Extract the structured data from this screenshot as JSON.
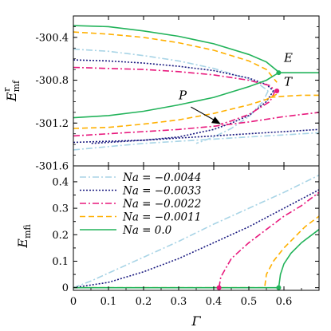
{
  "chart_data": [
    {
      "type": "line",
      "panel": "top",
      "ylabel": "E^r_mf",
      "ylabel_main": "E",
      "ylabel_sup": "r",
      "ylabel_sub": "mf",
      "xlim": [
        0,
        0.7
      ],
      "ylim": [
        -301.6,
        -300.2
      ],
      "yticks": [
        -300.4,
        -300.8,
        -301.2,
        -301.6
      ],
      "ytick_labels": [
        "-300.4",
        "-300.8",
        "-301.2",
        "-301.6"
      ],
      "xticks": [
        0,
        0.1,
        0.2,
        0.3,
        0.4,
        0.5,
        0.6
      ],
      "grid": false,
      "series": [
        {
          "name": "Na = -0.0044",
          "color": "#a8d4e6",
          "dash": "8,3,2,3",
          "branches": [
            {
              "x": [
                0,
                0.1,
                0.2,
                0.3,
                0.4,
                0.5,
                0.6,
                0.7
              ],
              "y": [
                -301.45,
                -301.42,
                -301.39,
                -301.37,
                -301.35,
                -301.33,
                -301.31,
                -301.29
              ]
            },
            {
              "x": [
                0,
                0.1,
                0.2,
                0.3,
                0.4,
                0.5,
                0.53,
                0.555
              ],
              "y": [
                -300.51,
                -300.53,
                -300.57,
                -300.62,
                -300.69,
                -300.79,
                -300.84,
                -300.9
              ]
            },
            {
              "x": [
                0.555,
                0.54,
                0.5,
                0.45,
                0.4,
                0.35
              ],
              "y": [
                -300.9,
                -301.0,
                -301.14,
                -301.25,
                -301.33,
                -301.39
              ]
            }
          ]
        },
        {
          "name": "Na = -0.0033",
          "color": "#1a1a80",
          "dash": "2,2",
          "branches": [
            {
              "x": [
                0,
                0.1,
                0.2,
                0.3,
                0.4,
                0.5,
                0.6,
                0.7
              ],
              "y": [
                -301.38,
                -301.37,
                -301.36,
                -301.34,
                -301.32,
                -301.3,
                -301.28,
                -301.26
              ]
            },
            {
              "x": [
                0,
                0.1,
                0.2,
                0.3,
                0.4,
                0.5,
                0.55,
                0.57
              ],
              "y": [
                -300.61,
                -300.62,
                -300.64,
                -300.67,
                -300.71,
                -300.78,
                -300.84,
                -300.9
              ]
            },
            {
              "x": [
                0.57,
                0.55,
                0.5,
                0.45,
                0.4,
                0.3,
                0.2,
                0.1,
                0.05
              ],
              "y": [
                -300.9,
                -301.0,
                -301.13,
                -301.2,
                -301.26,
                -301.33,
                -301.36,
                -301.38,
                -301.39
              ]
            }
          ]
        },
        {
          "name": "Na = -0.0022",
          "color": "#e8197d",
          "dash": "8,3,2,3",
          "branches": [
            {
              "x": [
                0,
                0.1,
                0.2,
                0.3,
                0.4,
                0.5,
                0.6,
                0.7
              ],
              "y": [
                -301.32,
                -301.3,
                -301.28,
                -301.26,
                -301.23,
                -301.19,
                -301.14,
                -301.1
              ]
            },
            {
              "x": [
                0,
                0.1,
                0.2,
                0.3,
                0.4,
                0.5,
                0.56,
                0.575
              ],
              "y": [
                -300.68,
                -300.69,
                -300.7,
                -300.72,
                -300.75,
                -300.8,
                -300.85,
                -300.9
              ]
            },
            {
              "x": [
                0.575,
                0.56,
                0.5,
                0.45,
                0.42
              ],
              "y": [
                -300.9,
                -301.0,
                -301.12,
                -301.18,
                -301.21
              ]
            }
          ]
        },
        {
          "name": "Na = -0.0011",
          "color": "#ffb000",
          "dash": "7,4",
          "branches": [
            {
              "x": [
                0,
                0.1,
                0.2,
                0.3,
                0.4,
                0.5,
                0.55,
                0.58
              ],
              "y": [
                -301.25,
                -301.24,
                -301.21,
                -301.17,
                -301.11,
                -301.03,
                -300.98,
                -300.93
              ]
            },
            {
              "x": [
                0,
                0.1,
                0.2,
                0.3,
                0.4,
                0.5,
                0.55,
                0.58
              ],
              "y": [
                -300.35,
                -300.37,
                -300.4,
                -300.45,
                -300.52,
                -300.62,
                -300.7,
                -300.82
              ]
            },
            {
              "x": [
                0.56,
                0.6,
                0.65,
                0.7
              ],
              "y": [
                -300.96,
                -300.95,
                -300.94,
                -300.94
              ]
            }
          ]
        },
        {
          "name": "Na = 0.0",
          "color": "#22b35a",
          "dash": "",
          "branches": [
            {
              "x": [
                0,
                0.1,
                0.2,
                0.3,
                0.4,
                0.5,
                0.55,
                0.58,
                0.585
              ],
              "y": [
                -301.15,
                -301.13,
                -301.09,
                -301.03,
                -300.96,
                -300.86,
                -300.8,
                -300.74,
                -300.73
              ]
            },
            {
              "x": [
                0,
                0.1,
                0.2,
                0.3,
                0.4,
                0.5,
                0.55,
                0.58,
                0.585
              ],
              "y": [
                -300.29,
                -300.3,
                -300.34,
                -300.39,
                -300.46,
                -300.56,
                -300.63,
                -300.71,
                -300.73
              ]
            },
            {
              "x": [
                0.585,
                0.6,
                0.65,
                0.7
              ],
              "y": [
                -300.73,
                -300.73,
                -300.73,
                -300.73
              ]
            }
          ]
        }
      ],
      "points": [
        {
          "label": "E",
          "x": 0.585,
          "y": -300.73,
          "color": "#22b35a"
        },
        {
          "label": "T",
          "x": 0.58,
          "y": -300.9,
          "color": "#e8197d"
        }
      ],
      "annotations": [
        {
          "text": "E",
          "x": 0.6,
          "y": -300.63
        },
        {
          "text": "T",
          "x": 0.6,
          "y": -300.85
        },
        {
          "text": "P",
          "x": 0.3,
          "y": -300.98
        }
      ],
      "arrow": {
        "from": [
          0.335,
          -301.05
        ],
        "to": [
          0.42,
          -301.21
        ]
      }
    },
    {
      "type": "line",
      "panel": "bottom",
      "xlabel": "Γ",
      "ylabel": "E^i_mf",
      "ylabel_main": "E",
      "ylabel_sup": "i",
      "ylabel_sub": "mf",
      "xlim": [
        0,
        0.7
      ],
      "ylim": [
        -0.01,
        0.46
      ],
      "xticks": [
        0,
        0.1,
        0.2,
        0.3,
        0.4,
        0.5,
        0.6
      ],
      "xtick_labels": [
        "0",
        "0.1",
        "0.2",
        "0.3",
        "0.4",
        "0.5",
        "0.6"
      ],
      "yticks": [
        0,
        0.05,
        0.1,
        0.15,
        0.2,
        0.25,
        0.3,
        0.35,
        0.4
      ],
      "ytick_labels": [
        "0",
        "",
        "0.1",
        "",
        "0.2",
        "",
        "0.3",
        "",
        "0.4"
      ],
      "grid": false,
      "legend_position": "top-left",
      "series": [
        {
          "name": "Na = -0.0044",
          "color": "#a8d4e6",
          "dash": "8,3,2,3",
          "x": [
            0,
            0.05,
            0.1,
            0.2,
            0.3,
            0.4,
            0.5,
            0.6,
            0.7
          ],
          "y": [
            0,
            0.025,
            0.055,
            0.115,
            0.175,
            0.24,
            0.3,
            0.36,
            0.425
          ]
        },
        {
          "name": "Na = -0.0033",
          "color": "#1a1a80",
          "dash": "2,2",
          "x": [
            0,
            0.1,
            0.2,
            0.3,
            0.4,
            0.5,
            0.6,
            0.7
          ],
          "y": [
            0,
            0.02,
            0.06,
            0.11,
            0.17,
            0.23,
            0.3,
            0.37
          ]
        },
        {
          "name": "Na = -0.0022",
          "color": "#e8197d",
          "dash": "8,3,2,3",
          "x": [
            0.415,
            0.42,
            0.45,
            0.5,
            0.55,
            0.6,
            0.65,
            0.7
          ],
          "y": [
            0,
            0.04,
            0.11,
            0.17,
            0.22,
            0.27,
            0.31,
            0.36
          ]
        },
        {
          "name": "Na = -0.0011",
          "color": "#ffb000",
          "dash": "7,4",
          "x": [
            0,
            0.545,
            0.55,
            0.57,
            0.6,
            0.63,
            0.66,
            0.7
          ],
          "y": [
            0,
            0,
            0.05,
            0.1,
            0.15,
            0.19,
            0.23,
            0.27
          ]
        },
        {
          "name": "Na = 0.0",
          "color": "#22b35a",
          "dash": "",
          "x": [
            0,
            0.585,
            0.59,
            0.6,
            0.62,
            0.65,
            0.7
          ],
          "y": [
            0,
            0,
            0.05,
            0.09,
            0.13,
            0.17,
            0.22
          ]
        }
      ],
      "points": [
        {
          "x": 0.415,
          "y": 0,
          "color": "#e8197d"
        },
        {
          "x": 0.585,
          "y": 0,
          "color": "#22b35a"
        }
      ],
      "legend": [
        {
          "label": "Na = −0.0044",
          "color": "#a8d4e6",
          "dash": "8,3,2,3"
        },
        {
          "label": "Na = −0.0033",
          "color": "#1a1a80",
          "dash": "2,2"
        },
        {
          "label": "Na = −0.0022",
          "color": "#e8197d",
          "dash": "8,3,2,3"
        },
        {
          "label": "Na = −0.0011",
          "color": "#ffb000",
          "dash": "7,4"
        },
        {
          "label": "Na = 0.0",
          "color": "#22b35a",
          "dash": ""
        }
      ]
    }
  ]
}
